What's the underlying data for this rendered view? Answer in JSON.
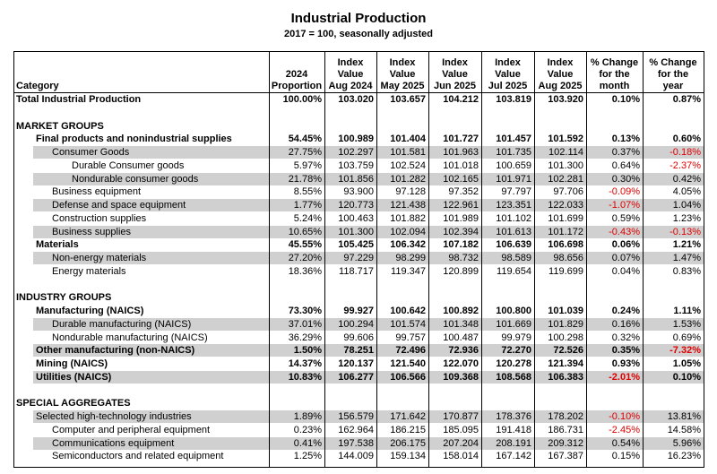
{
  "header": {
    "title": "Industrial Production",
    "subtitle": "2017 = 100, seasonally adjusted"
  },
  "table": {
    "headers": [
      [
        "Category"
      ],
      [
        "2024",
        "Proportion"
      ],
      [
        "Index",
        "Value",
        "Aug 2024"
      ],
      [
        "Index",
        "Value",
        "May 2025"
      ],
      [
        "Index",
        "Value",
        "Jun 2025"
      ],
      [
        "Index",
        "Value",
        "Jul 2025"
      ],
      [
        "Index",
        "Value",
        "Aug 2025"
      ],
      [
        "% Change",
        "for the",
        "month"
      ],
      [
        "% Change",
        "for the",
        "year"
      ]
    ],
    "rows": [
      [
        "Total Industrial Production",
        "100.00%",
        "103.020",
        "103.657",
        "104.212",
        "103.819",
        "103.920",
        "0.10%",
        "0.87%"
      ],
      [
        "MARKET GROUPS"
      ],
      [
        "Final products and nonindustrial supplies",
        "54.45%",
        "100.989",
        "101.404",
        "101.727",
        "101.457",
        "101.592",
        "0.13%",
        "0.60%"
      ],
      [
        "Consumer Goods",
        "27.75%",
        "102.297",
        "101.581",
        "101.963",
        "101.735",
        "102.114",
        "0.37%",
        "-0.18%"
      ],
      [
        "Durable Consumer goods",
        "5.97%",
        "103.759",
        "102.524",
        "101.018",
        "100.659",
        "101.300",
        "0.64%",
        "-2.37%"
      ],
      [
        "Nondurable consumer goods",
        "21.78%",
        "101.856",
        "101.282",
        "102.165",
        "101.971",
        "102.281",
        "0.30%",
        "0.42%"
      ],
      [
        "Business equipment",
        "8.55%",
        "93.900",
        "97.128",
        "97.352",
        "97.797",
        "97.706",
        "-0.09%",
        "4.05%"
      ],
      [
        "Defense and space equipment",
        "1.77%",
        "120.773",
        "121.438",
        "122.961",
        "123.351",
        "122.033",
        "-1.07%",
        "1.04%"
      ],
      [
        "Construction supplies",
        "5.24%",
        "100.463",
        "101.882",
        "101.989",
        "101.102",
        "101.699",
        "0.59%",
        "1.23%"
      ],
      [
        "Business supplies",
        "10.65%",
        "101.300",
        "102.094",
        "102.394",
        "101.613",
        "101.172",
        "-0.43%",
        "-0.13%"
      ],
      [
        "Materials",
        "45.55%",
        "105.425",
        "106.342",
        "107.182",
        "106.639",
        "106.698",
        "0.06%",
        "1.21%"
      ],
      [
        "Non-energy materials",
        "27.20%",
        "97.229",
        "98.299",
        "98.732",
        "98.589",
        "98.656",
        "0.07%",
        "1.47%"
      ],
      [
        "Energy materials",
        "18.36%",
        "118.717",
        "119.347",
        "120.899",
        "119.654",
        "119.699",
        "0.04%",
        "0.83%"
      ],
      [
        "INDUSTRY GROUPS"
      ],
      [
        "Manufacturing (NAICS)",
        "73.30%",
        "99.927",
        "100.642",
        "100.892",
        "100.800",
        "101.039",
        "0.24%",
        "1.11%"
      ],
      [
        "Durable manufacturing (NAICS)",
        "37.01%",
        "100.294",
        "101.574",
        "101.348",
        "101.669",
        "101.829",
        "0.16%",
        "1.53%"
      ],
      [
        "Nondurable manufacturing (NAICS)",
        "36.29%",
        "99.606",
        "99.757",
        "100.487",
        "99.979",
        "100.298",
        "0.32%",
        "0.69%"
      ],
      [
        "Other manufacturing (non-NAICS)",
        "1.50%",
        "78.251",
        "72.496",
        "72.936",
        "72.270",
        "72.526",
        "0.35%",
        "-7.32%"
      ],
      [
        "Mining (NAICS)",
        "14.37%",
        "120.137",
        "121.540",
        "122.070",
        "120.278",
        "121.394",
        "0.93%",
        "1.05%"
      ],
      [
        "Utilities (NAICS)",
        "10.83%",
        "106.277",
        "106.566",
        "109.368",
        "108.568",
        "106.383",
        "-2.01%",
        "0.10%"
      ],
      [
        "SPECIAL AGGREGATES"
      ],
      [
        "Selected high-technology industries",
        "1.89%",
        "156.579",
        "171.642",
        "170.877",
        "178.376",
        "178.202",
        "-0.10%",
        "13.81%"
      ],
      [
        "Computer and peripheral equipment",
        "0.23%",
        "162.964",
        "186.215",
        "185.095",
        "191.418",
        "186.731",
        "-2.45%",
        "14.58%"
      ],
      [
        "Communications equipment",
        "0.41%",
        "197.538",
        "206.175",
        "207.204",
        "208.191",
        "209.312",
        "0.54%",
        "5.96%"
      ],
      [
        "Semiconductors and related equipment",
        "1.25%",
        "144.009",
        "159.134",
        "158.014",
        "167.142",
        "167.387",
        "0.15%",
        "16.23%"
      ]
    ]
  }
}
